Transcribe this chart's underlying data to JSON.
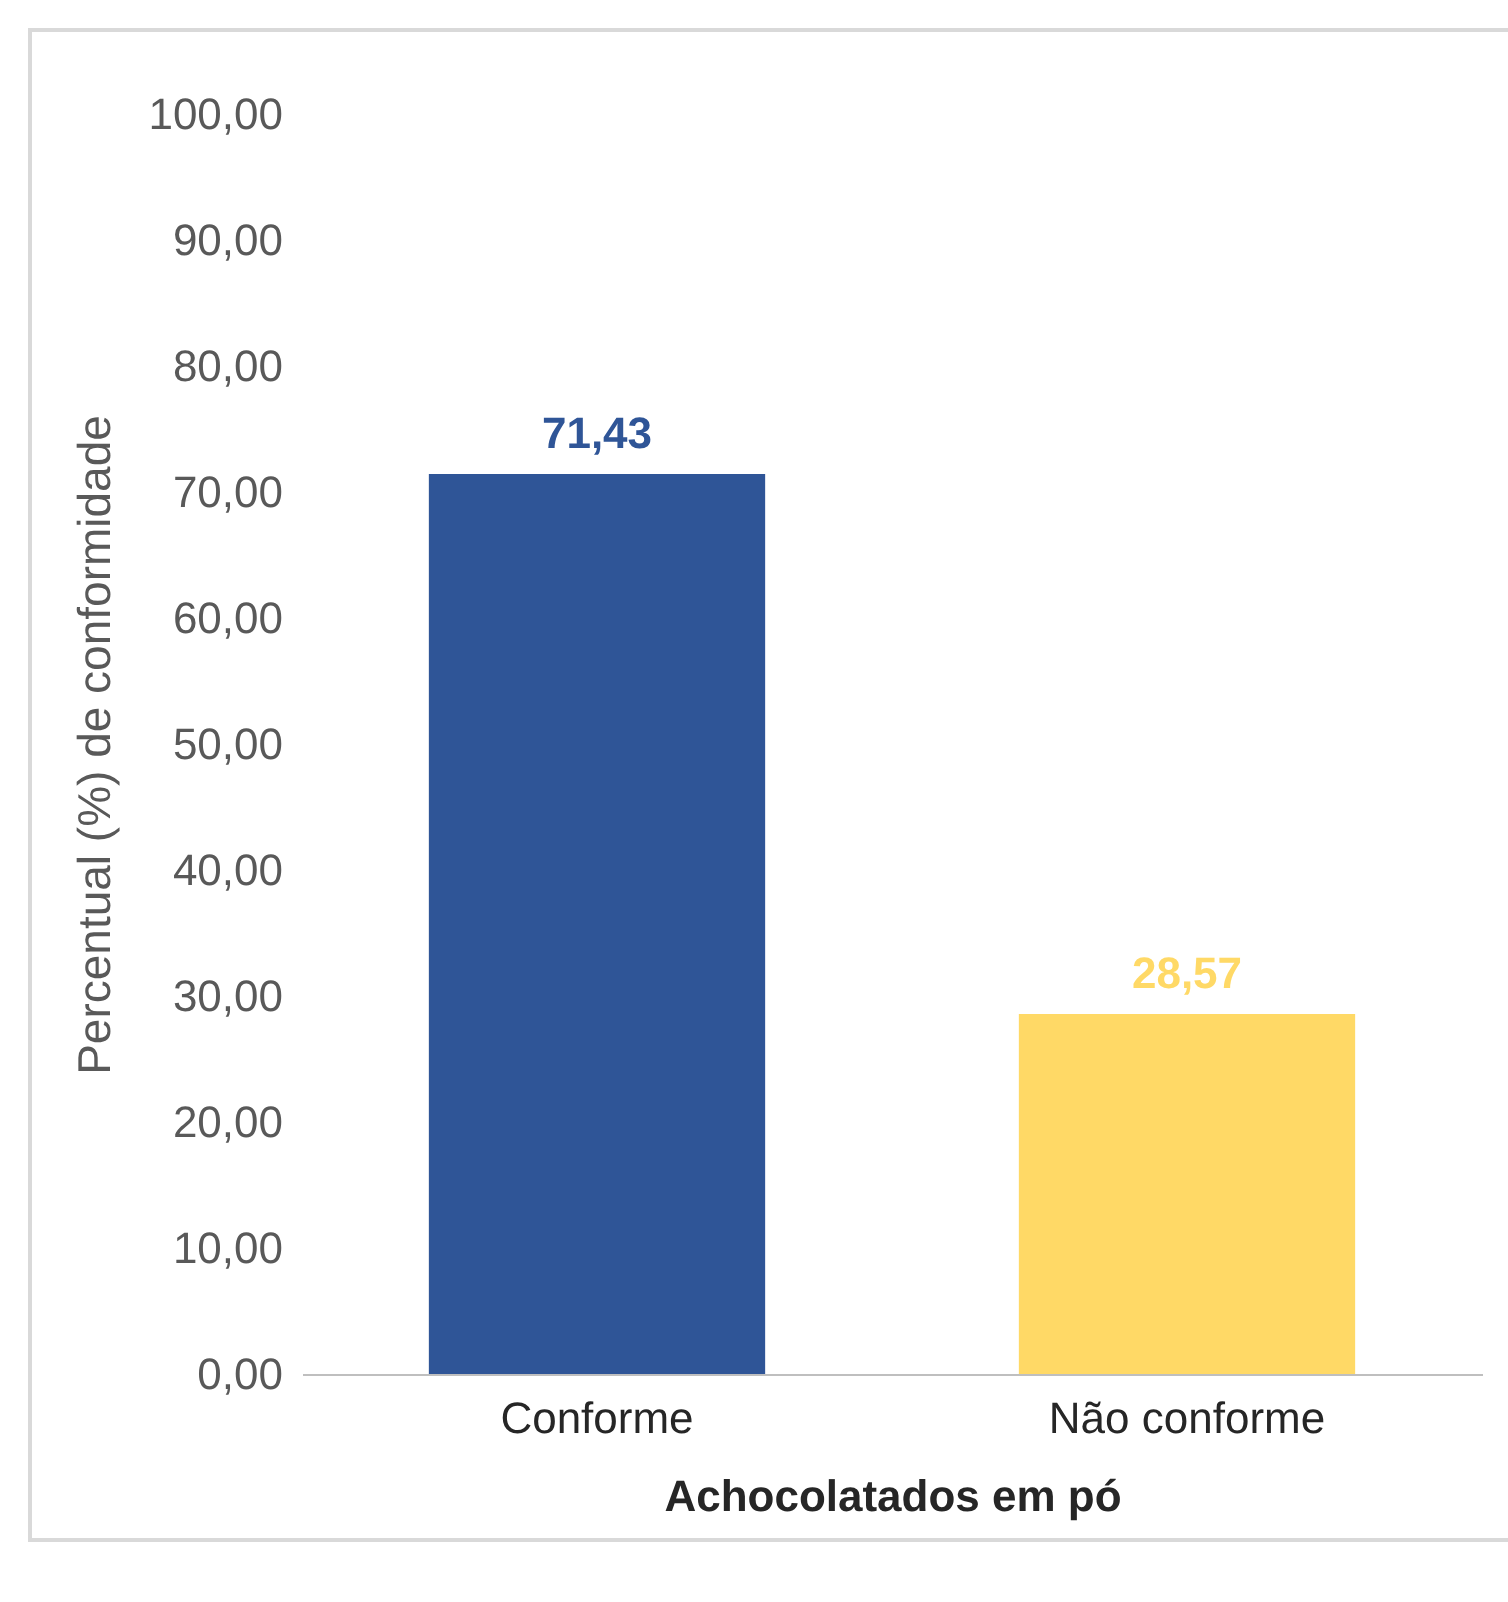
{
  "chart_data": {
    "type": "bar",
    "xlabel": "Achocolatados em pó",
    "ylabel": "Percentual (%) de conformidade",
    "categories": [
      "Conforme",
      "Não conforme"
    ],
    "values": [
      71.43,
      28.57
    ],
    "colors": [
      "#2f5597",
      "#ffd966"
    ],
    "value_labels": [
      "71,43",
      "28,57"
    ],
    "ylim": [
      0,
      100
    ],
    "yticks": [
      {
        "value": 0,
        "label": "0,00"
      },
      {
        "value": 10,
        "label": "10,00"
      },
      {
        "value": 20,
        "label": "20,00"
      },
      {
        "value": 30,
        "label": "30,00"
      },
      {
        "value": 40,
        "label": "40,00"
      },
      {
        "value": 50,
        "label": "50,00"
      },
      {
        "value": 60,
        "label": "60,00"
      },
      {
        "value": 70,
        "label": "70,00"
      },
      {
        "value": 80,
        "label": "80,00"
      },
      {
        "value": 90,
        "label": "90,00"
      },
      {
        "value": 100,
        "label": "100,00"
      }
    ],
    "legend": false
  }
}
